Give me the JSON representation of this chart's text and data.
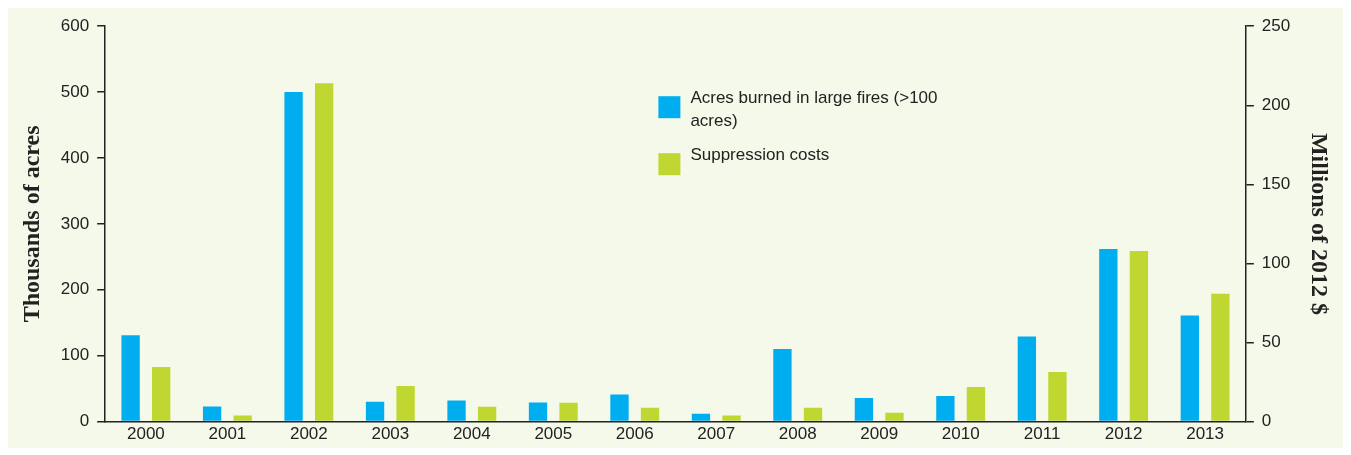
{
  "chart_data": {
    "type": "bar",
    "categories": [
      "2000",
      "2001",
      "2002",
      "2003",
      "2004",
      "2005",
      "2006",
      "2007",
      "2008",
      "2009",
      "2010",
      "2011",
      "2012",
      "2013"
    ],
    "series": [
      {
        "name": "Acres burned in large fires (>100 acres)",
        "color": "#00aeef",
        "values": [
          131,
          23,
          500,
          30,
          32,
          29,
          41,
          12,
          110,
          36,
          39,
          129,
          262,
          161
        ]
      },
      {
        "name": "Suppression costs",
        "color": "#bfd730",
        "axis": "y2",
        "values": [
          34.5,
          3.8,
          214,
          22.5,
          9.4,
          11.9,
          8.8,
          3.8,
          8.8,
          5.6,
          21.9,
          31.3,
          107.8,
          80.8
        ]
      }
    ],
    "ylabel": "Thousands of acres",
    "y2label": "Millions of 2012 $",
    "ylim": [
      0,
      600
    ],
    "yticks": [
      0,
      100,
      200,
      300,
      400,
      500,
      600
    ],
    "y2lim": [
      0,
      250
    ],
    "y2ticks": [
      0,
      50,
      100,
      150,
      200,
      250
    ],
    "grid": false,
    "legend": "top"
  }
}
